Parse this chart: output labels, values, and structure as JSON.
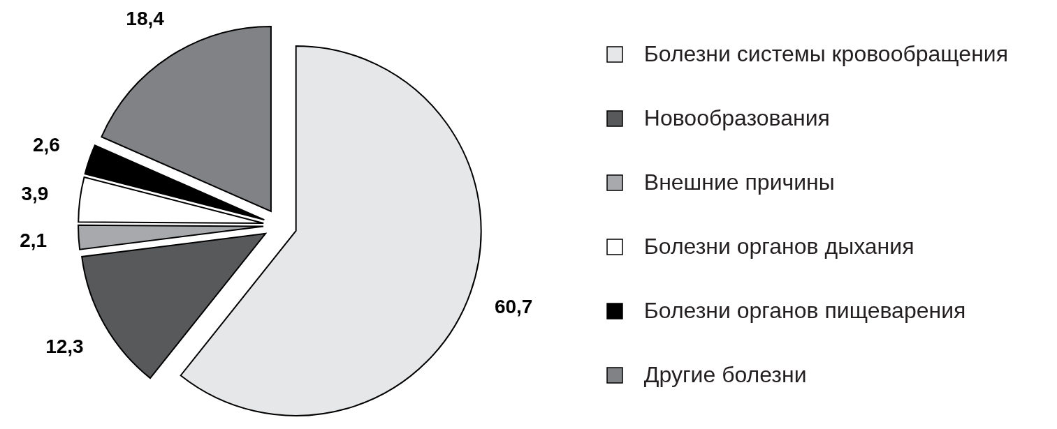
{
  "chart_data": {
    "type": "pie",
    "categories": [
      "Болезни системы кровообращения",
      "Новообразования",
      "Внешние причины",
      "Болезни органов дыхания",
      "Болезни органов пищеварения",
      "Другие болезни"
    ],
    "values": [
      60.7,
      12.3,
      2.1,
      3.9,
      2.6,
      18.4
    ],
    "colors": [
      "#e6e7e8",
      "#58595b",
      "#a7a9ac",
      "#ffffff",
      "#000000",
      "#808285"
    ],
    "value_labels": [
      "60,7",
      "12,3",
      "2,1",
      "3,9",
      "2,6",
      "18,4"
    ],
    "legend": "right"
  }
}
